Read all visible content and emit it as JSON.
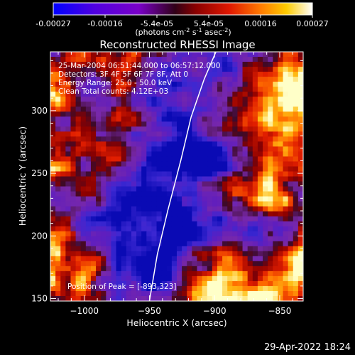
{
  "colorbar": {
    "tick_labels": [
      "-0.00027",
      "-0.00016",
      "-5.4e-05",
      "5.4e-05",
      "0.00016",
      "0.00027"
    ],
    "unit_label_parts": [
      "(photons cm",
      "-2",
      " s",
      "-1",
      " asec",
      "-2",
      ")"
    ],
    "range": [
      -0.00027,
      0.00027
    ],
    "colors": [
      "#0000ff",
      "#6a00cc",
      "#3a0010",
      "#b40000",
      "#ff5a00",
      "#ffaa00",
      "#ffff40",
      "#ffffff"
    ]
  },
  "info_lines": [
    "25-Mar-2004 06:51:44.000 to 06:57:12.000",
    "Detectors: 3F 4F 5F 6F 7F 8F, Att 0",
    "Energy Range: 25.0 - 50.0 keV",
    "Clean     Total counts: 4.12E+03"
  ],
  "peak_label": "Position of Peak = [-893,323]",
  "timestamp": "29-Apr-2022 18:24",
  "chart_data": {
    "type": "heatmap",
    "title": "Reconstructed RHESSI Image",
    "xlabel": "Heliocentric X (arcsec)",
    "ylabel": "Heliocentric Y (arcsec)",
    "xlim": [
      -1026,
      -832
    ],
    "ylim": [
      148,
      347
    ],
    "xticks": [
      -1000,
      -950,
      -900,
      -850
    ],
    "yticks": [
      150,
      200,
      250,
      300
    ],
    "xtick_labels": [
      "−1000",
      "−950",
      "−900",
      "−850"
    ],
    "ytick_labels": [
      "150",
      "200",
      "250",
      "300"
    ],
    "limb_curve": [
      [
        -950,
        148
      ],
      [
        -944,
        185
      ],
      [
        -936,
        220
      ],
      [
        -926,
        260
      ],
      [
        -918,
        295
      ],
      [
        -908,
        325
      ],
      [
        -899,
        347
      ]
    ],
    "peak_position": [
      -893,
      323
    ],
    "pixel_grid": [
      50,
      50
    ]
  }
}
